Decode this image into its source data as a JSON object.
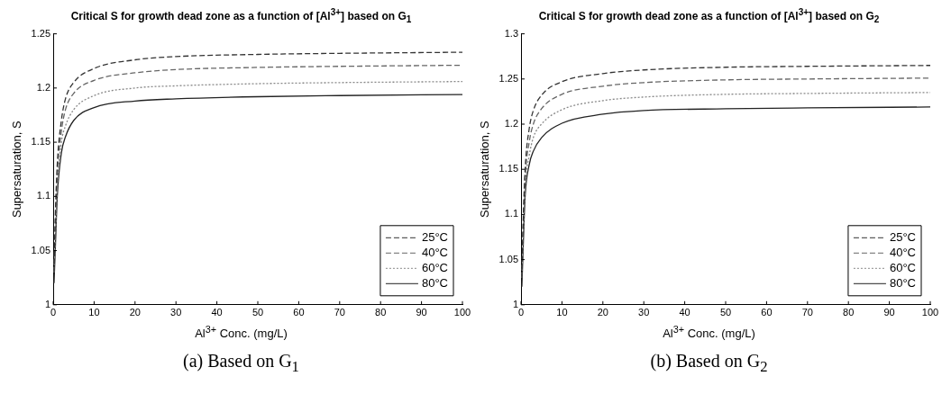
{
  "chart_data": [
    {
      "type": "line",
      "title": "Critical S for growth dead zone as a function of [Al$^{3+}$] based on G$_{1}$",
      "xlabel": "Al$^{3+}$ Conc. (mg/L)",
      "ylabel": "Supersaturation, S",
      "annotations": [
        "(a) Based on G$_{1}$"
      ],
      "xlim": [
        0,
        100
      ],
      "xticks": [
        0,
        10,
        20,
        30,
        40,
        50,
        60,
        70,
        80,
        90,
        100
      ],
      "ylim": [
        1,
        1.25
      ],
      "yticks": [
        1,
        1.05,
        1.1,
        1.15,
        1.2,
        1.25
      ],
      "grid": false,
      "legend": "bottom right",
      "marker": "none",
      "x": [
        0.2,
        0.5,
        1,
        2,
        3,
        5,
        10,
        20,
        30,
        50,
        70,
        100
      ],
      "series": [
        {
          "name": "25°C",
          "color": "#333333",
          "line_style": "dashed",
          "values": [
            1.03,
            1.08,
            1.13,
            1.17,
            1.19,
            1.205,
            1.218,
            1.226,
            1.229,
            1.231,
            1.232,
            1.233
          ]
        },
        {
          "name": "40°C",
          "color": "#666666",
          "line_style": "dashed",
          "values": [
            1.03,
            1.07,
            1.12,
            1.16,
            1.18,
            1.195,
            1.207,
            1.214,
            1.217,
            1.219,
            1.22,
            1.221
          ]
        },
        {
          "name": "60°C",
          "color": "#888888",
          "line_style": "dotted",
          "values": [
            1.03,
            1.06,
            1.11,
            1.15,
            1.165,
            1.18,
            1.193,
            1.2,
            1.202,
            1.204,
            1.205,
            1.206
          ]
        },
        {
          "name": "80°C",
          "color": "#222222",
          "line_style": "solid",
          "values": [
            1.02,
            1.05,
            1.1,
            1.14,
            1.155,
            1.17,
            1.182,
            1.188,
            1.19,
            1.192,
            1.193,
            1.194
          ]
        }
      ]
    },
    {
      "type": "line",
      "title": "Critical S for growth dead zone as a function of [Al$^{3+}$] based on G$_{2}$",
      "xlabel": "Al$^{3+}$ Conc. (mg/L)",
      "ylabel": "Supersaturation, S",
      "annotations": [
        "(b) Based on G$_{2}$"
      ],
      "xlim": [
        0,
        100
      ],
      "xticks": [
        0,
        10,
        20,
        30,
        40,
        50,
        60,
        70,
        80,
        90,
        100
      ],
      "ylim": [
        1,
        1.3
      ],
      "yticks": [
        1,
        1.05,
        1.1,
        1.15,
        1.2,
        1.25,
        1.3
      ],
      "grid": false,
      "legend": "bottom right",
      "marker": "none",
      "x": [
        0.2,
        0.5,
        1,
        2,
        3,
        5,
        10,
        20,
        30,
        50,
        70,
        100
      ],
      "series": [
        {
          "name": "25°C",
          "color": "#333333",
          "line_style": "dashed",
          "values": [
            1.03,
            1.09,
            1.15,
            1.195,
            1.215,
            1.232,
            1.247,
            1.256,
            1.26,
            1.263,
            1.264,
            1.265
          ]
        },
        {
          "name": "40°C",
          "color": "#666666",
          "line_style": "dashed",
          "values": [
            1.03,
            1.08,
            1.14,
            1.18,
            1.2,
            1.217,
            1.233,
            1.242,
            1.246,
            1.249,
            1.25,
            1.251
          ]
        },
        {
          "name": "60°C",
          "color": "#888888",
          "line_style": "dotted",
          "values": [
            1.03,
            1.07,
            1.13,
            1.165,
            1.185,
            1.2,
            1.216,
            1.226,
            1.23,
            1.233,
            1.234,
            1.235
          ]
        },
        {
          "name": "80°C",
          "color": "#222222",
          "line_style": "solid",
          "values": [
            1.02,
            1.06,
            1.12,
            1.155,
            1.17,
            1.185,
            1.201,
            1.211,
            1.215,
            1.217,
            1.218,
            1.219
          ]
        }
      ]
    }
  ]
}
